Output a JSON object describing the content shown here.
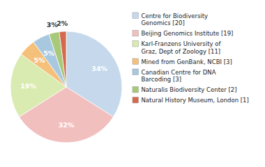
{
  "chart_data": {
    "type": "pie",
    "categories": [
      "Centre for Biodiversity\nGenomics [20]",
      "Beijing Genomics Institute [19]",
      "Karl-Franzens University of\nGraz, Dept of Zoology [11]",
      "Mined from GenBank, NCBI [3]",
      "Canadian Centre for DNA\nBarcoding [3]",
      "Naturalis Biodiversity Center [2]",
      "Natural History Museum, London [1]"
    ],
    "values": [
      34,
      32,
      19,
      5,
      5,
      3,
      2
    ],
    "value_labels": [
      "34%",
      "32%",
      "19%",
      "5%",
      "5%",
      "3%",
      "2%"
    ],
    "colors": [
      "#c5d8ec",
      "#f2bfbf",
      "#d9ebb0",
      "#f5c07a",
      "#a8c8e0",
      "#a8c87a",
      "#d4694e"
    ],
    "data_labels": true,
    "legend": "right"
  }
}
